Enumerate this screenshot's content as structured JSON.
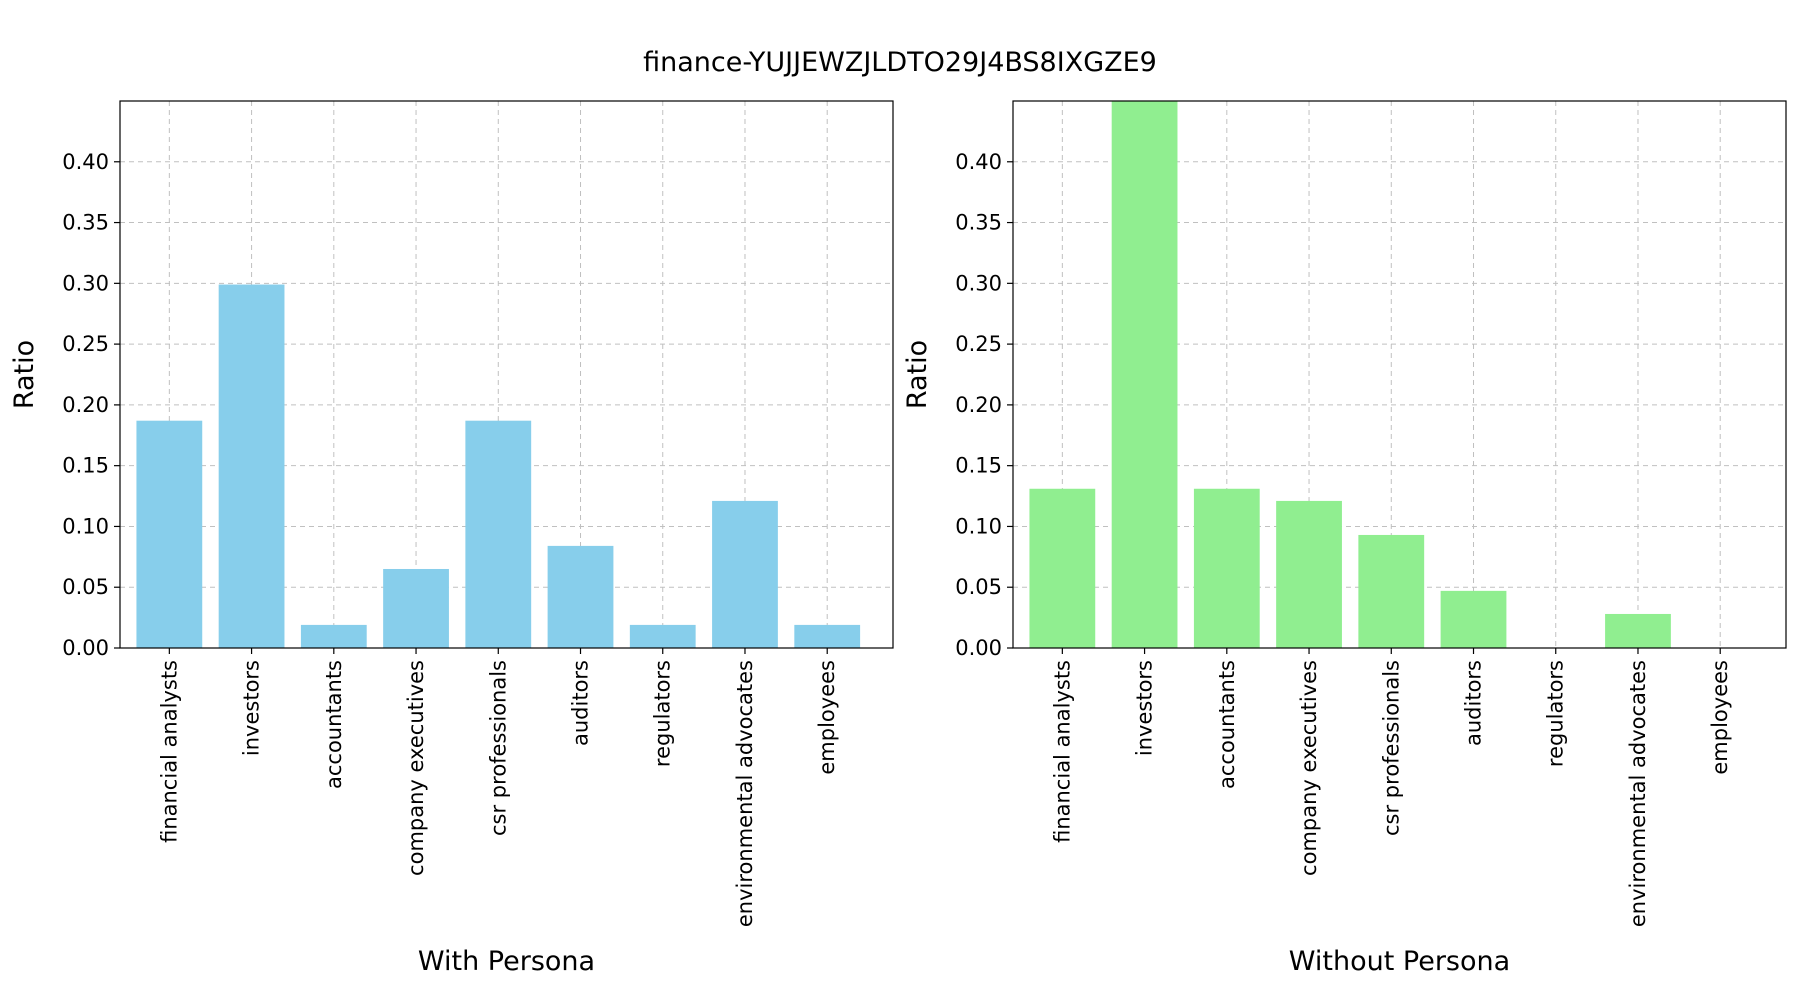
{
  "figure": {
    "suptitle": "finance-YUJJEWZJLDTO29J4BS8IXGZE9"
  },
  "chart_data": [
    {
      "type": "bar",
      "title": "",
      "xlabel": "With Persona",
      "ylabel": "Ratio",
      "ylim": [
        0,
        0.45
      ],
      "yticks": [
        "0.00",
        "0.05",
        "0.10",
        "0.15",
        "0.20",
        "0.25",
        "0.30",
        "0.35",
        "0.40"
      ],
      "grid": true,
      "bar_color": "#87CEEB",
      "categories": [
        "financial analysts",
        "investors",
        "accountants",
        "company executives",
        "csr professionals",
        "auditors",
        "regulators",
        "environmental advocates",
        "employees"
      ],
      "values": [
        0.187,
        0.299,
        0.019,
        0.065,
        0.187,
        0.084,
        0.019,
        0.121,
        0.019
      ]
    },
    {
      "type": "bar",
      "title": "",
      "xlabel": "Without Persona",
      "ylabel": "Ratio",
      "ylim": [
        0,
        0.45
      ],
      "yticks": [
        "0.00",
        "0.05",
        "0.10",
        "0.15",
        "0.20",
        "0.25",
        "0.30",
        "0.35",
        "0.40"
      ],
      "grid": true,
      "bar_color": "#90EE90",
      "categories": [
        "financial analysts",
        "investors",
        "accountants",
        "company executives",
        "csr professionals",
        "auditors",
        "regulators",
        "environmental advocates",
        "employees"
      ],
      "values": [
        0.131,
        0.45,
        0.131,
        0.121,
        0.093,
        0.047,
        0.0,
        0.028,
        0.0
      ]
    }
  ]
}
